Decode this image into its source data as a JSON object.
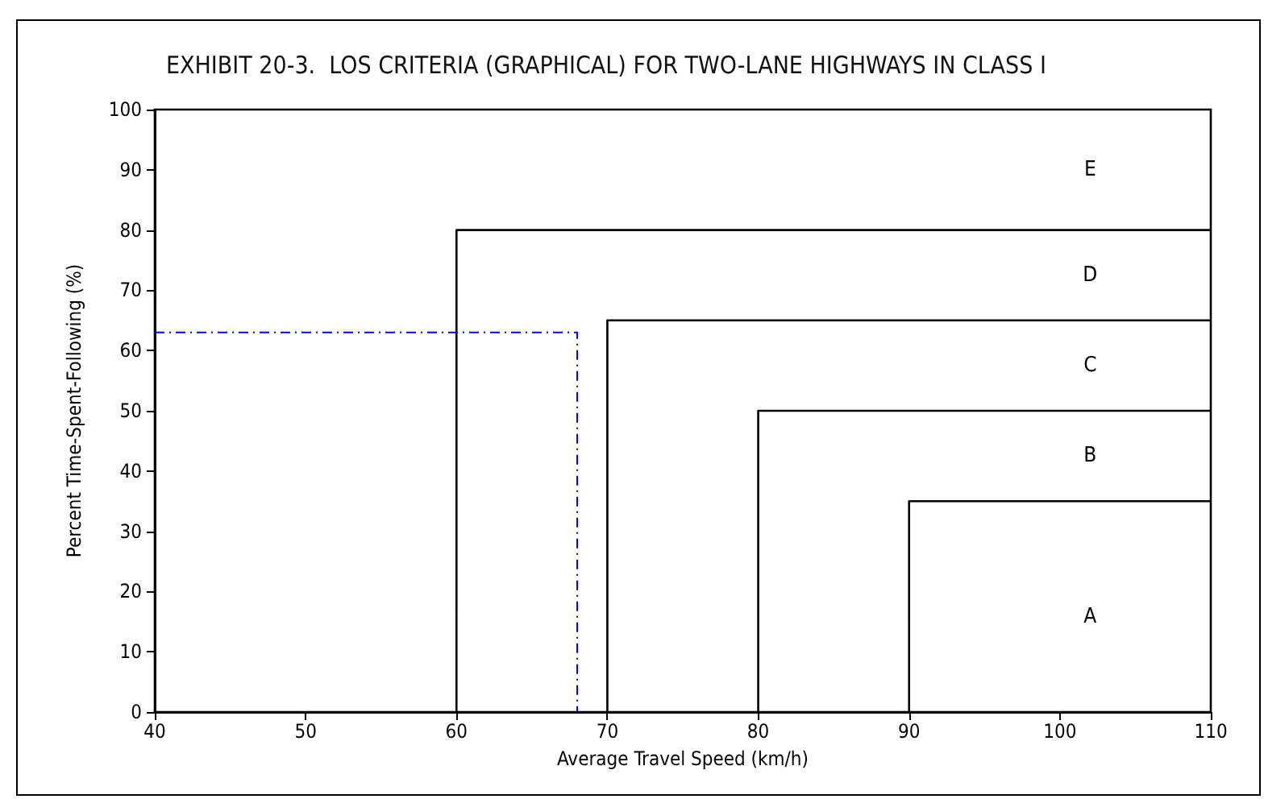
{
  "chart_data": {
    "type": "line",
    "title": "EXHIBIT 20-3.  LOS CRITERIA (GRAPHICAL) FOR TWO-LANE HIGHWAYS IN CLASS I",
    "xlabel": "Average Travel Speed (km/h)",
    "ylabel": "Percent Time-Spent-Following (%)",
    "xlim": [
      40,
      110
    ],
    "xticks": [
      40,
      50,
      60,
      70,
      80,
      90,
      100,
      110
    ],
    "ylim": [
      0,
      100
    ],
    "yticks": [
      0,
      10,
      20,
      30,
      40,
      50,
      60,
      70,
      80,
      90,
      100
    ],
    "grid": false,
    "marker": "none",
    "line_style": "solid",
    "series": [
      {
        "color": "#000000",
        "x": [
          60,
          60,
          110
        ],
        "values": [
          0,
          80,
          80
        ]
      },
      {
        "color": "#000000",
        "x": [
          70,
          70,
          110
        ],
        "values": [
          0,
          65,
          65
        ]
      },
      {
        "color": "#000000",
        "x": [
          80,
          80,
          110
        ],
        "values": [
          0,
          50,
          50
        ]
      },
      {
        "color": "#000000",
        "x": [
          90,
          90,
          110
        ],
        "values": [
          0,
          35,
          35
        ]
      },
      {
        "color": "#0000ff",
        "line_style": "dashed",
        "x": [
          40,
          68,
          68
        ],
        "values": [
          63,
          63,
          0
        ]
      }
    ],
    "annotations": [
      "E",
      "D",
      "C",
      "B",
      "A"
    ]
  }
}
